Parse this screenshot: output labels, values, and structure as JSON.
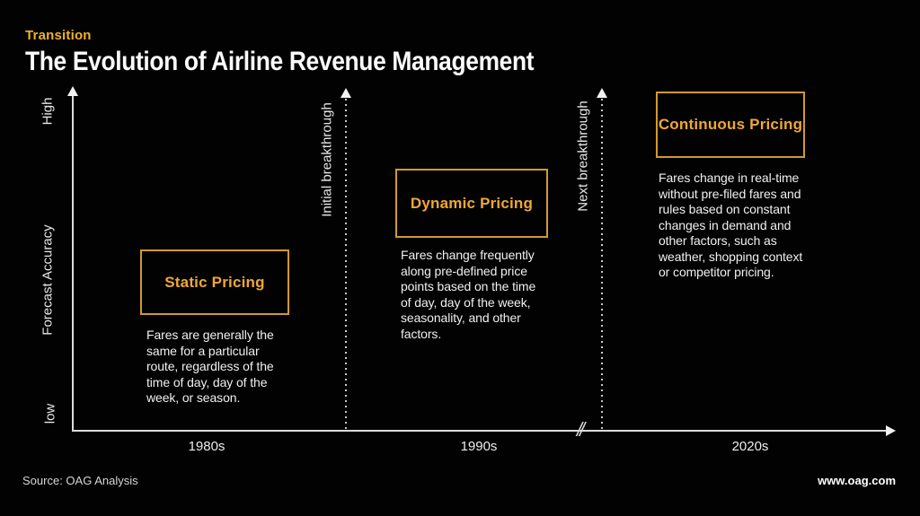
{
  "header": {
    "eyebrow": "Transition",
    "title": "The Evolution of Airline Revenue Management"
  },
  "axes": {
    "y_title": "Forecast Accuracy",
    "y_top_label": "High",
    "y_bottom_label": "low",
    "x_ticks": [
      "1980s",
      "1990s",
      "2020s"
    ],
    "break_symbol": "//"
  },
  "milestones": [
    {
      "label": "Initial breakthrough"
    },
    {
      "label": "Next breakthrough"
    }
  ],
  "stages": [
    {
      "title": "Static Pricing",
      "era": "1980s",
      "description": "Fares are generally the same for a particular route, regardless of the time of day, day of the week, or season."
    },
    {
      "title": "Dynamic Pricing",
      "era": "1990s",
      "description": "Fares change frequently along pre-defined price points based on the time of day, day of the week, seasonality, and other factors."
    },
    {
      "title": "Continuous Pricing",
      "era": "2020s",
      "description": "Fares change in real-time without pre-filed fares and rules based on constant changes in demand and other factors, such as weather, shopping context or competitor pricing."
    }
  ],
  "footer": {
    "source": "Source: OAG Analysis",
    "website": "www.oag.com"
  },
  "colors": {
    "background": "#020202",
    "accent_yellow": "#F1B227",
    "stage_title_orange": "#F0A735",
    "box_border_orange": "#D2992F",
    "axis_gray": "#dcdcdc",
    "text_white": "#f0f0f0"
  }
}
